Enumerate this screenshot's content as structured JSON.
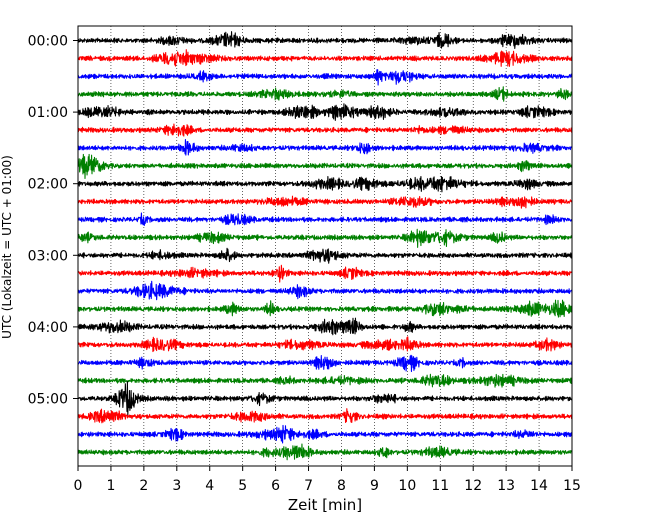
{
  "chart_data": {
    "type": "line",
    "title": "",
    "xlabel": "Zeit  [min]",
    "ylabel": "UTC (Lokalzeit = UTC + 01:00)",
    "xlim": [
      0,
      15
    ],
    "x_ticks": [
      "0",
      "1",
      "2",
      "3",
      "4",
      "5",
      "6",
      "7",
      "8",
      "9",
      "10",
      "11",
      "12",
      "13",
      "14",
      "15"
    ],
    "y_ticks": [
      "00:00",
      "01:00",
      "02:00",
      "03:00",
      "04:00",
      "05:00"
    ],
    "trace_interval_min": 15,
    "trace_count": 24,
    "trace_colors": [
      "#000000",
      "#ff0000",
      "#0000ff",
      "#008000"
    ],
    "grid": "vertical dotted",
    "legend": "none"
  }
}
